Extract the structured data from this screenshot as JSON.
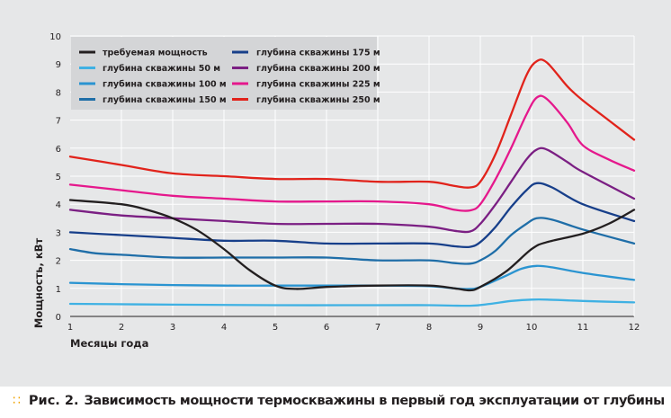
{
  "caption": {
    "label": "Рис. 2.",
    "text": "Зависимость мощности термоскважины в первый год эксплуатации от глубины"
  },
  "chart_data": {
    "type": "line",
    "title": "",
    "xlabel": "Месяцы года",
    "ylabel": "Мощность, кВт",
    "xlim": [
      1,
      12
    ],
    "ylim": [
      0,
      10
    ],
    "x_ticks": [
      1,
      2,
      3,
      4,
      5,
      6,
      7,
      8,
      9,
      10,
      11,
      12
    ],
    "y_ticks": [
      0,
      1,
      2,
      3,
      4,
      5,
      6,
      7,
      8,
      9,
      10
    ],
    "grid": true,
    "legend_position": "top-left",
    "series": [
      {
        "name": "требуемая мощность",
        "color": "#231f20",
        "points": [
          [
            1,
            4.15
          ],
          [
            2,
            4.0
          ],
          [
            2.5,
            3.8
          ],
          [
            3,
            3.5
          ],
          [
            3.5,
            3.05
          ],
          [
            4,
            2.4
          ],
          [
            4.5,
            1.65
          ],
          [
            5,
            1.1
          ],
          [
            5.4,
            0.98
          ],
          [
            6,
            1.05
          ],
          [
            7,
            1.1
          ],
          [
            8,
            1.1
          ],
          [
            8.5,
            1.0
          ],
          [
            8.8,
            0.93
          ],
          [
            9,
            1.05
          ],
          [
            9.5,
            1.6
          ],
          [
            10,
            2.4
          ],
          [
            10.3,
            2.65
          ],
          [
            11,
            2.95
          ],
          [
            11.5,
            3.3
          ],
          [
            12,
            3.8
          ]
        ]
      },
      {
        "name": "глубина скважины 50 м",
        "color": "#3fb1e3",
        "points": [
          [
            1,
            0.45
          ],
          [
            3,
            0.42
          ],
          [
            5,
            0.4
          ],
          [
            7,
            0.4
          ],
          [
            8,
            0.4
          ],
          [
            8.8,
            0.38
          ],
          [
            9.2,
            0.45
          ],
          [
            9.6,
            0.55
          ],
          [
            10,
            0.6
          ],
          [
            10.3,
            0.6
          ],
          [
            11,
            0.55
          ],
          [
            12,
            0.5
          ]
        ]
      },
      {
        "name": "глубина скважины 100 м",
        "color": "#2a94d1",
        "points": [
          [
            1,
            1.2
          ],
          [
            2,
            1.15
          ],
          [
            3,
            1.12
          ],
          [
            4,
            1.1
          ],
          [
            5,
            1.1
          ],
          [
            6,
            1.1
          ],
          [
            7,
            1.1
          ],
          [
            8,
            1.08
          ],
          [
            8.5,
            1.0
          ],
          [
            8.8,
            0.98
          ],
          [
            9,
            1.05
          ],
          [
            9.5,
            1.45
          ],
          [
            9.8,
            1.7
          ],
          [
            10.1,
            1.8
          ],
          [
            10.4,
            1.75
          ],
          [
            11,
            1.55
          ],
          [
            12,
            1.3
          ]
        ]
      },
      {
        "name": "глубина скважины 150 м",
        "color": "#1f6ea8",
        "points": [
          [
            1,
            2.4
          ],
          [
            1.5,
            2.25
          ],
          [
            2,
            2.2
          ],
          [
            3,
            2.1
          ],
          [
            4,
            2.1
          ],
          [
            5,
            2.1
          ],
          [
            6,
            2.1
          ],
          [
            7,
            2.0
          ],
          [
            8,
            2.0
          ],
          [
            8.5,
            1.9
          ],
          [
            8.8,
            1.88
          ],
          [
            9,
            2.0
          ],
          [
            9.3,
            2.35
          ],
          [
            9.6,
            2.9
          ],
          [
            9.9,
            3.3
          ],
          [
            10.1,
            3.5
          ],
          [
            10.4,
            3.45
          ],
          [
            11,
            3.1
          ],
          [
            12,
            2.6
          ]
        ]
      },
      {
        "name": "глубина скважины 175 м",
        "color": "#173f8a",
        "points": [
          [
            1,
            3.0
          ],
          [
            2,
            2.9
          ],
          [
            3,
            2.8
          ],
          [
            4,
            2.7
          ],
          [
            5,
            2.7
          ],
          [
            6,
            2.6
          ],
          [
            7,
            2.6
          ],
          [
            8,
            2.6
          ],
          [
            8.5,
            2.5
          ],
          [
            8.8,
            2.48
          ],
          [
            9,
            2.65
          ],
          [
            9.3,
            3.2
          ],
          [
            9.6,
            3.9
          ],
          [
            9.9,
            4.5
          ],
          [
            10.1,
            4.75
          ],
          [
            10.4,
            4.6
          ],
          [
            11,
            4.0
          ],
          [
            12,
            3.4
          ]
        ]
      },
      {
        "name": "глубина скважины 200 м",
        "color": "#7b1f83",
        "points": [
          [
            1,
            3.8
          ],
          [
            2,
            3.6
          ],
          [
            3,
            3.5
          ],
          [
            4,
            3.4
          ],
          [
            5,
            3.3
          ],
          [
            6,
            3.3
          ],
          [
            7,
            3.3
          ],
          [
            8,
            3.2
          ],
          [
            8.5,
            3.05
          ],
          [
            8.8,
            3.03
          ],
          [
            9,
            3.3
          ],
          [
            9.3,
            4.0
          ],
          [
            9.6,
            4.8
          ],
          [
            9.9,
            5.6
          ],
          [
            10.1,
            5.95
          ],
          [
            10.3,
            5.95
          ],
          [
            10.7,
            5.5
          ],
          [
            11,
            5.15
          ],
          [
            12,
            4.2
          ]
        ]
      },
      {
        "name": "глубина скважины 225 м",
        "color": "#e5188c",
        "points": [
          [
            1,
            4.7
          ],
          [
            2,
            4.5
          ],
          [
            3,
            4.3
          ],
          [
            4,
            4.2
          ],
          [
            5,
            4.1
          ],
          [
            6,
            4.1
          ],
          [
            7,
            4.1
          ],
          [
            8,
            4.0
          ],
          [
            8.5,
            3.8
          ],
          [
            8.8,
            3.78
          ],
          [
            9,
            4.0
          ],
          [
            9.3,
            4.9
          ],
          [
            9.6,
            6.0
          ],
          [
            9.9,
            7.2
          ],
          [
            10.1,
            7.8
          ],
          [
            10.3,
            7.75
          ],
          [
            10.7,
            6.9
          ],
          [
            11,
            6.1
          ],
          [
            11.5,
            5.6
          ],
          [
            12,
            5.2
          ]
        ]
      },
      {
        "name": "глубина скважины 250 м",
        "color": "#e1231b",
        "points": [
          [
            1,
            5.7
          ],
          [
            2,
            5.4
          ],
          [
            3,
            5.1
          ],
          [
            4,
            5.0
          ],
          [
            5,
            4.9
          ],
          [
            6,
            4.9
          ],
          [
            7,
            4.8
          ],
          [
            8,
            4.8
          ],
          [
            8.5,
            4.65
          ],
          [
            8.8,
            4.6
          ],
          [
            9,
            4.8
          ],
          [
            9.3,
            5.8
          ],
          [
            9.6,
            7.2
          ],
          [
            9.9,
            8.6
          ],
          [
            10.1,
            9.1
          ],
          [
            10.3,
            9.05
          ],
          [
            10.7,
            8.2
          ],
          [
            11,
            7.7
          ],
          [
            11.5,
            7.0
          ],
          [
            12,
            6.3
          ]
        ]
      }
    ]
  }
}
